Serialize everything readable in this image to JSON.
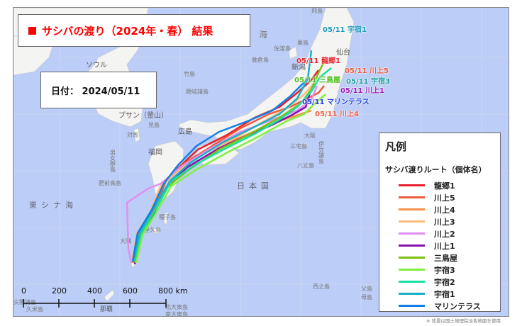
{
  "title": "サシバの渡り（2024年・春） 結果",
  "date_label": "日付： 2024/05/11",
  "legend": {
    "title": "凡例",
    "subtitle": "サシバ渡りルート（個体名）",
    "items": [
      {
        "name": "龍郷1",
        "color": "#e8202a"
      },
      {
        "name": "川上5",
        "color": "#f05a3c"
      },
      {
        "name": "川上4",
        "color": "#f5904a"
      },
      {
        "name": "川上3",
        "color": "#ffbb77"
      },
      {
        "name": "川上2",
        "color": "#e08ef0"
      },
      {
        "name": "川上1",
        "color": "#8a10b0"
      },
      {
        "name": "三鳥屋",
        "color": "#7cc010"
      },
      {
        "name": "宇宿3",
        "color": "#80f040"
      },
      {
        "name": "宇宿2",
        "color": "#18e0a0"
      },
      {
        "name": "宇宿1",
        "color": "#18b0c8"
      },
      {
        "name": "マリンテラス",
        "color": "#1080e8"
      }
    ]
  },
  "route_labels": [
    {
      "text": "05/11 宇宿1",
      "color": "#1a9ab8"
    },
    {
      "text": "05/11 龍郷1",
      "color": "#e8202a"
    },
    {
      "text": "05/11 川上5",
      "color": "#f05a3c"
    },
    {
      "text": "05/11 三鳥屋",
      "color": "#50c020"
    },
    {
      "text": "05/11 宇宿3",
      "color": "#20a0a0"
    },
    {
      "text": "05/11 川上1",
      "color": "#a020c0"
    },
    {
      "text": "05/11 マリンテラス",
      "color": "#2040e0"
    },
    {
      "text": "05/11 川上4",
      "color": "#f05a3c"
    }
  ],
  "scale_bar": {
    "ticks": [
      "0",
      "200",
      "400",
      "600",
      "800 km"
    ]
  },
  "place_labels": [
    "海",
    "佐渡島",
    "舳倉島",
    "粟島",
    "飛島",
    "仙台",
    "新潟",
    "ソウル",
    "竹島",
    "隠岐諸島",
    "プサン（釜山）",
    "対馬",
    "見島",
    "広島",
    "福岡",
    "大阪",
    "三宅島",
    "八丈島",
    "伊豆諸島",
    "種子島",
    "屋久島",
    "大隅",
    "肥前鳥島",
    "男女群島",
    "東シナ海",
    "日本国",
    "西之島",
    "父島",
    "母島",
    "那覇",
    "久米島",
    "尖閣諸島",
    "北大東島",
    "南大東島",
    "久米島"
  ],
  "credit": "※ 背景は国土地理院淡色地図を使用"
}
